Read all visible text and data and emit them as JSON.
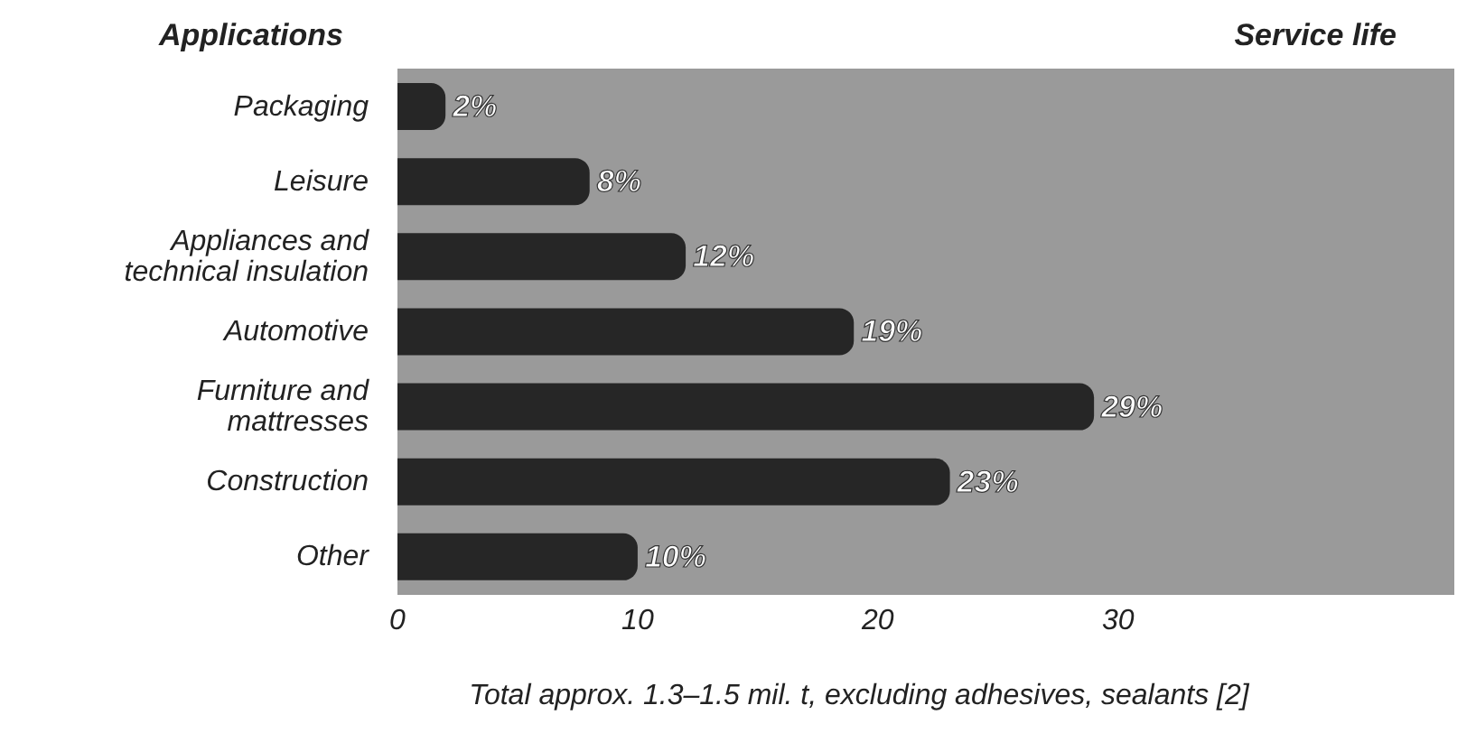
{
  "chart_data": {
    "type": "bar",
    "orientation": "horizontal",
    "ylabel": "Applications",
    "xlabel": "Total approx. 1.3–1.5 mil. t, excluding adhesives, sealants [2]",
    "categories": [
      "Packaging",
      "Leisure",
      "Appliances and technical insulation",
      "Automotive",
      "Furniture and mattresses",
      "Construction",
      "Other"
    ],
    "values": [
      2,
      8,
      12,
      19,
      29,
      23,
      10
    ],
    "value_labels": [
      "2%",
      "8%",
      "12%",
      "19%",
      "29%",
      "23%",
      "10%"
    ],
    "color": "#262626",
    "xlim": [
      0,
      44
    ],
    "xticks": [
      0,
      10,
      20,
      30
    ],
    "annotations": [
      "Service life"
    ]
  }
}
